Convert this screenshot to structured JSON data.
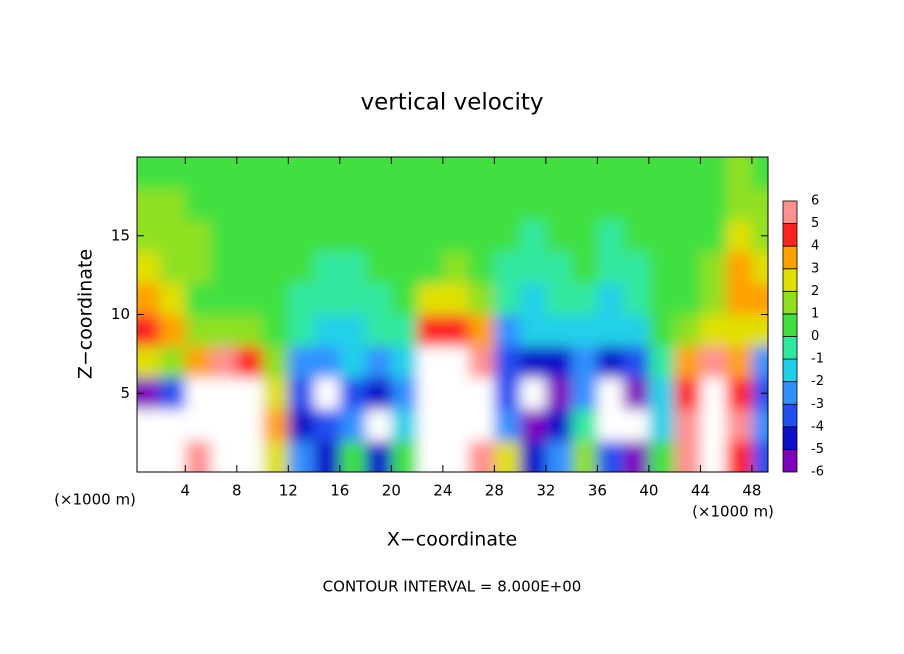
{
  "chart_data": {
    "type": "heatmap",
    "title": "vertical velocity",
    "x_label": "X−coordinate",
    "y_label": "Z−coordinate",
    "x_unit": "(×1000 m)",
    "y_unit": "(×1000 m)",
    "footer": "CONTOUR INTERVAL = 8.000E+00",
    "xlim": [
      0.25,
      49.25
    ],
    "ylim": [
      0,
      20
    ],
    "xticks": [
      4,
      8,
      12,
      16,
      20,
      24,
      28,
      32,
      36,
      40,
      44,
      48
    ],
    "yticks": [
      5,
      10,
      15
    ],
    "x": [
      1,
      3,
      5,
      7,
      9,
      11,
      13,
      15,
      17,
      19,
      21,
      23,
      25,
      27,
      29,
      31,
      33,
      35,
      37,
      39,
      41,
      43,
      45,
      47,
      49
    ],
    "y": [
      1,
      3,
      5,
      7,
      9,
      11,
      13,
      15,
      17,
      19
    ],
    "values": [
      [
        -7,
        -8,
        -6,
        2,
        4,
        3,
        2,
        1.5,
        1,
        0.5
      ],
      [
        -7,
        -7,
        -4,
        1,
        3,
        2,
        1.5,
        1.5,
        1,
        0.5
      ],
      [
        5,
        7,
        7,
        3,
        1,
        0,
        1,
        1,
        0.5,
        0.5
      ],
      [
        7,
        8,
        8,
        5,
        1,
        0,
        0.5,
        0.5,
        0.5,
        0
      ],
      [
        7,
        8,
        7,
        4,
        1,
        0,
        0.5,
        0.5,
        0,
        0
      ],
      [
        2,
        3,
        2,
        1,
        0,
        0,
        0,
        0,
        0,
        0
      ],
      [
        -3,
        -5,
        -4,
        -3,
        -1,
        -1,
        0,
        0,
        0,
        0
      ],
      [
        -5,
        -4,
        -7,
        -3,
        -2,
        -1,
        -1,
        0,
        0,
        0
      ],
      [
        0,
        -3,
        -4,
        -2,
        -2,
        -1,
        -0.5,
        0,
        0,
        0
      ],
      [
        -5,
        -7,
        -5,
        -3,
        -1,
        -1,
        0,
        0,
        0,
        0
      ],
      [
        0,
        -2,
        -3,
        -2,
        -1,
        0,
        0,
        0,
        0,
        0
      ],
      [
        7,
        8,
        8,
        7,
        4,
        2,
        0,
        0,
        0.5,
        0
      ],
      [
        8,
        8,
        8,
        7,
        4,
        2,
        1,
        0,
        0,
        0
      ],
      [
        6,
        7,
        7,
        6,
        3,
        1,
        0,
        0,
        0,
        0
      ],
      [
        2,
        -3,
        -4,
        -4,
        -3,
        -1,
        -1,
        0,
        0,
        0
      ],
      [
        -5,
        -6,
        -7,
        -5,
        -2,
        -2,
        -1,
        -1,
        0,
        0
      ],
      [
        -3,
        -5,
        -6,
        -5,
        -2,
        -1,
        -1,
        0,
        0,
        0
      ],
      [
        1,
        -1,
        -3,
        -3,
        -2,
        -1,
        0,
        0,
        0,
        0
      ],
      [
        -4,
        -7,
        -7,
        -5,
        -2,
        -2,
        -1,
        -1,
        0,
        0
      ],
      [
        -6,
        -7,
        -6,
        -4,
        -2,
        -1,
        -1,
        0,
        0,
        0
      ],
      [
        0,
        -2,
        -2,
        -1,
        0,
        0,
        0,
        0,
        0,
        0
      ],
      [
        6,
        5,
        4,
        3,
        1,
        0,
        0,
        0,
        0,
        0
      ],
      [
        8,
        8,
        7,
        5,
        2,
        1,
        1,
        0.5,
        0.5,
        0
      ],
      [
        4,
        5,
        4,
        3,
        2,
        3,
        3,
        2,
        1.5,
        1
      ],
      [
        -4,
        -3,
        -4,
        -3,
        2,
        3,
        2,
        1.5,
        1,
        0.5
      ]
    ],
    "colorbar_ticks": [
      -6,
      -5,
      -4,
      -3,
      -2,
      -1,
      0,
      1,
      2,
      3,
      4,
      5,
      6
    ],
    "colors": [
      "#8000c0",
      "#1010c8",
      "#2050f0",
      "#3090ff",
      "#20d0e8",
      "#30e8a0",
      "#40e040",
      "#90e020",
      "#e0e000",
      "#ffa000",
      "#ff2020",
      "#ff9090"
    ],
    "out_of_range_color": "#ffffff"
  }
}
